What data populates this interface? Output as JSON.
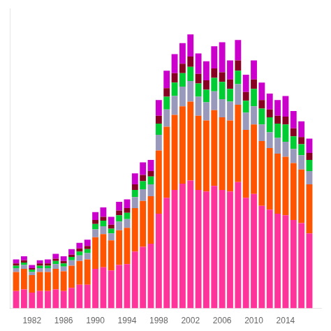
{
  "chart_data": {
    "type": "bar",
    "stacked": true,
    "grid": false,
    "tick_labels": "x",
    "x": [
      1980,
      1981,
      1982,
      1983,
      1984,
      1985,
      1986,
      1987,
      1988,
      1989,
      1990,
      1991,
      1992,
      1993,
      1994,
      1995,
      1996,
      1997,
      1998,
      1999,
      2000,
      2001,
      2002,
      2003,
      2004,
      2005,
      2006,
      2007,
      2008,
      2009,
      2010,
      2011,
      2012,
      2013,
      2014,
      2015,
      2016,
      2017
    ],
    "xlim": [
      1979.2,
      2018.5
    ],
    "xticks": [
      1982,
      1986,
      1990,
      1994,
      1998,
      2002,
      2006,
      2010,
      2014
    ],
    "ylim": [
      0,
      380
    ],
    "series": [
      {
        "color": "#FF3399",
        "values": [
          22,
          24,
          20,
          22,
          22,
          24,
          22,
          26,
          30,
          30,
          50,
          52,
          48,
          55,
          56,
          72,
          78,
          82,
          120,
          140,
          150,
          158,
          162,
          150,
          148,
          155,
          150,
          148,
          160,
          140,
          145,
          130,
          125,
          120,
          118,
          112,
          108,
          95
        ]
      },
      {
        "color": "#FF5500",
        "values": [
          24,
          26,
          22,
          24,
          24,
          26,
          25,
          28,
          30,
          32,
          40,
          42,
          38,
          44,
          46,
          55,
          58,
          60,
          80,
          90,
          95,
          98,
          100,
          94,
          90,
          96,
          92,
          90,
          98,
          86,
          88,
          82,
          78,
          76,
          74,
          72,
          68,
          62
        ]
      },
      {
        "color": "#9999BB",
        "values": [
          5,
          5,
          4,
          5,
          5,
          6,
          6,
          7,
          7,
          8,
          10,
          10,
          9,
          11,
          11,
          14,
          15,
          15,
          20,
          22,
          24,
          25,
          26,
          24,
          23,
          24,
          23,
          24,
          26,
          22,
          23,
          21,
          20,
          20,
          19,
          18,
          18,
          17
        ]
      },
      {
        "color": "#00CC33",
        "values": [
          3,
          3,
          3,
          3,
          3,
          4,
          4,
          4,
          5,
          5,
          7,
          7,
          6,
          8,
          8,
          9,
          10,
          10,
          14,
          16,
          17,
          17,
          18,
          17,
          16,
          17,
          22,
          16,
          17,
          15,
          22,
          20,
          19,
          18,
          22,
          16,
          14,
          14
        ]
      },
      {
        "color": "#880022",
        "values": [
          3,
          3,
          2,
          3,
          3,
          3,
          3,
          3,
          4,
          4,
          5,
          5,
          5,
          6,
          6,
          7,
          8,
          7,
          10,
          11,
          12,
          12,
          13,
          12,
          12,
          12,
          12,
          12,
          13,
          11,
          12,
          11,
          10,
          10,
          10,
          10,
          9,
          9
        ]
      },
      {
        "color": "#CC00CC",
        "values": [
          5,
          5,
          4,
          4,
          5,
          6,
          6,
          7,
          7,
          8,
          10,
          12,
          10,
          11,
          11,
          14,
          16,
          14,
          20,
          22,
          24,
          26,
          28,
          26,
          24,
          28,
          38,
          24,
          26,
          22,
          24,
          22,
          20,
          20,
          26,
          22,
          20,
          18
        ]
      }
    ]
  }
}
